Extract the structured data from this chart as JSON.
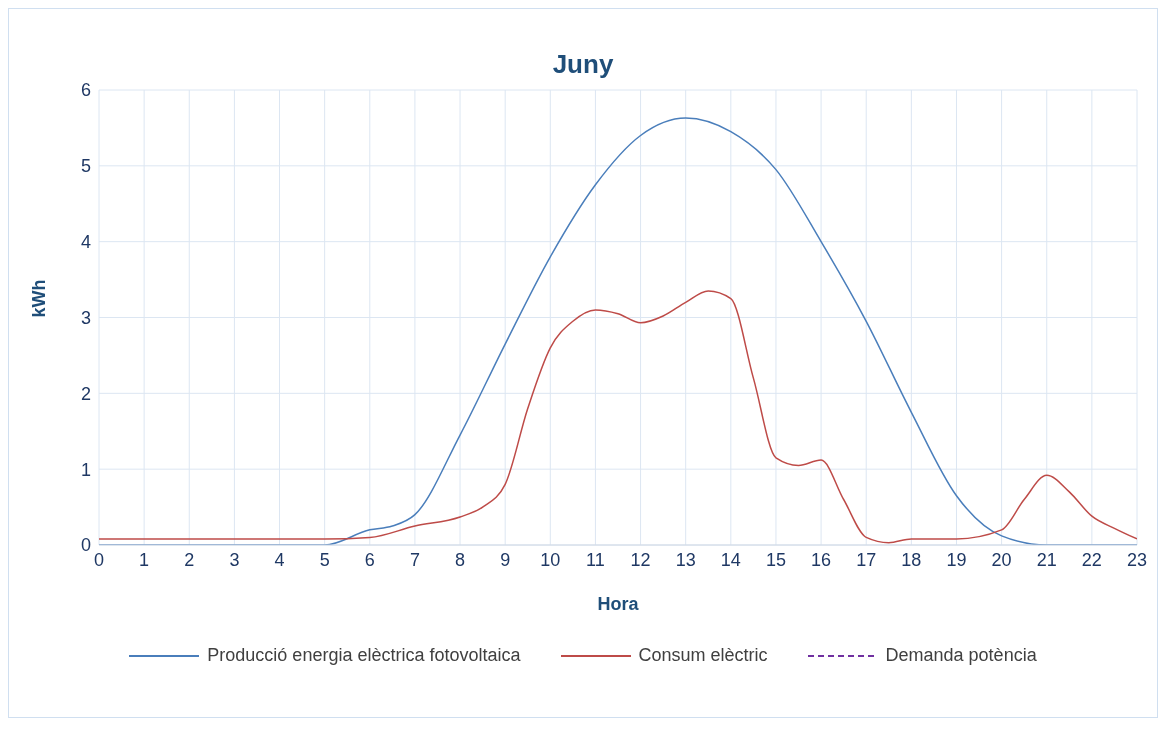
{
  "chart_data": {
    "type": "line",
    "title": "Juny",
    "xlabel": "Hora",
    "ylabel": "kWh",
    "xlim": [
      0,
      23
    ],
    "xticks": [
      0,
      1,
      2,
      3,
      4,
      5,
      6,
      7,
      8,
      9,
      10,
      11,
      12,
      13,
      14,
      15,
      16,
      17,
      18,
      19,
      20,
      21,
      22,
      23
    ],
    "ylim": [
      0,
      6
    ],
    "yticks": [
      0,
      1,
      2,
      3,
      4,
      5,
      6
    ],
    "grid": true,
    "legend": "bottom",
    "marker": "none",
    "series": [
      {
        "name": "Producció energia elèctrica fotovoltaica",
        "color": "#4a7ebb",
        "line_style": "solid",
        "x": [
          0,
          1,
          2,
          3,
          4,
          5,
          6,
          6.5,
          7,
          8,
          9,
          10,
          11,
          12,
          13,
          14,
          15,
          16,
          17,
          18,
          19,
          20,
          21,
          22,
          23
        ],
        "values": [
          0,
          0,
          0,
          0,
          0,
          0,
          0.2,
          0.25,
          0.4,
          1.45,
          2.65,
          3.8,
          4.75,
          5.4,
          5.63,
          5.45,
          4.95,
          4.0,
          2.95,
          1.75,
          0.65,
          0.12,
          0,
          0,
          0
        ]
      },
      {
        "name": "Consum elèctric",
        "color": "#be4b48",
        "line_style": "solid",
        "x": [
          0,
          1,
          2,
          3,
          4,
          5,
          6,
          7,
          8,
          8.5,
          9,
          9.5,
          10,
          10.5,
          11,
          11.5,
          12,
          12.5,
          13,
          13.5,
          14,
          14.5,
          15,
          15.5,
          16,
          16.5,
          17,
          17.5,
          18,
          19,
          20,
          20.5,
          21,
          21.5,
          22,
          22.5,
          23
        ],
        "values": [
          0.08,
          0.08,
          0.08,
          0.08,
          0.08,
          0.08,
          0.1,
          0.25,
          0.37,
          0.5,
          0.8,
          1.8,
          2.6,
          2.95,
          3.1,
          3.05,
          2.93,
          3.02,
          3.2,
          3.35,
          3.25,
          2.2,
          1.15,
          1.05,
          1.12,
          0.6,
          0.1,
          0.03,
          0.08,
          0.08,
          0.2,
          0.6,
          0.92,
          0.7,
          0.38,
          0.22,
          0.08
        ]
      },
      {
        "name": "Demanda potència",
        "color": "#7030a0",
        "line_style": "dashed"
      }
    ]
  }
}
